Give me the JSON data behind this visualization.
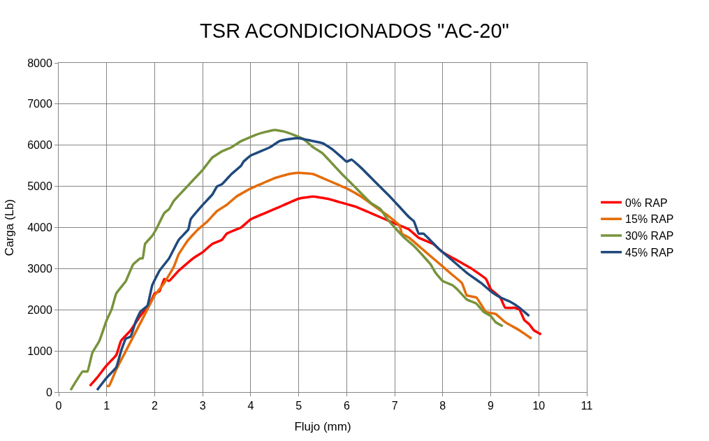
{
  "chart_data": {
    "type": "line",
    "title": "TSR ACONDICIONADOS \"AC-20\"",
    "xlabel": "Flujo (mm)",
    "ylabel": "Carga (Lb)",
    "xlim": [
      0,
      11
    ],
    "xticks": [
      0,
      1,
      2,
      3,
      4,
      5,
      6,
      7,
      8,
      9,
      10,
      11
    ],
    "ylim": [
      0,
      8000
    ],
    "yticks": [
      0,
      1000,
      2000,
      3000,
      4000,
      5000,
      6000,
      7000,
      8000
    ],
    "grid": true,
    "legend": "right",
    "marker": "none",
    "line_style": "solid",
    "series": [
      {
        "name": "0% RAP",
        "color": "#ff0000",
        "x": [
          0.65,
          0.8,
          1.0,
          1.2,
          1.3,
          1.5,
          1.7,
          1.9,
          2.0,
          2.1,
          2.2,
          2.3,
          2.5,
          2.8,
          3.0,
          3.2,
          3.4,
          3.5,
          3.8,
          4.0,
          4.3,
          4.6,
          5.0,
          5.3,
          5.6,
          5.9,
          6.2,
          6.5,
          7.0,
          7.3,
          7.5,
          7.8,
          8.0,
          8.3,
          8.6,
          8.9,
          9.0,
          9.2,
          9.3,
          9.5,
          9.6,
          9.7,
          9.8,
          9.9,
          10.05
        ],
        "values": [
          150,
          350,
          650,
          900,
          1250,
          1500,
          1850,
          2150,
          2400,
          2450,
          2750,
          2700,
          2950,
          3250,
          3400,
          3600,
          3700,
          3850,
          4000,
          4200,
          4350,
          4500,
          4700,
          4750,
          4700,
          4600,
          4500,
          4350,
          4100,
          3950,
          3750,
          3600,
          3400,
          3200,
          3000,
          2750,
          2500,
          2300,
          2050,
          2050,
          2000,
          1750,
          1650,
          1500,
          1400
        ]
      },
      {
        "name": "15% RAP",
        "color": "#e46c0a",
        "x": [
          1.0,
          1.05,
          1.2,
          1.4,
          1.6,
          1.8,
          2.0,
          2.2,
          2.4,
          2.5,
          2.7,
          2.9,
          3.1,
          3.3,
          3.5,
          3.7,
          4.0,
          4.3,
          4.5,
          4.8,
          5.0,
          5.3,
          5.5,
          5.8,
          6.0,
          6.3,
          6.6,
          6.9,
          7.1,
          7.15,
          7.3,
          7.6,
          7.9,
          8.2,
          8.4,
          8.5,
          8.7,
          8.9,
          9.1,
          9.3,
          9.6,
          9.85
        ],
        "values": [
          150,
          150,
          550,
          1000,
          1450,
          1900,
          2350,
          2650,
          3050,
          3350,
          3700,
          3950,
          4150,
          4400,
          4550,
          4750,
          4950,
          5100,
          5200,
          5300,
          5330,
          5300,
          5200,
          5050,
          4950,
          4750,
          4500,
          4250,
          4050,
          3850,
          3750,
          3450,
          3150,
          2850,
          2650,
          2350,
          2300,
          1950,
          1900,
          1700,
          1500,
          1300
        ]
      },
      {
        "name": "30% RAP",
        "color": "#77933c",
        "x": [
          0.25,
          0.5,
          0.6,
          0.7,
          0.85,
          1.0,
          1.1,
          1.2,
          1.4,
          1.55,
          1.7,
          1.75,
          1.8,
          1.95,
          2.05,
          2.2,
          2.3,
          2.4,
          2.6,
          2.8,
          3.0,
          3.1,
          3.2,
          3.4,
          3.6,
          3.8,
          4.0,
          4.1,
          4.3,
          4.5,
          4.7,
          4.9,
          5.1,
          5.3,
          5.5,
          5.7,
          5.9,
          6.2,
          6.5,
          6.7,
          6.85,
          7.0,
          7.2,
          7.4,
          7.6,
          7.75,
          7.85,
          8.0,
          8.2,
          8.3,
          8.5,
          8.7,
          8.85,
          9.0,
          9.1,
          9.25
        ],
        "values": [
          50,
          500,
          500,
          950,
          1250,
          1750,
          2000,
          2400,
          2700,
          3100,
          3250,
          3250,
          3600,
          3800,
          4000,
          4350,
          4450,
          4650,
          4900,
          5150,
          5400,
          5550,
          5700,
          5850,
          5950,
          6100,
          6200,
          6250,
          6320,
          6370,
          6330,
          6250,
          6150,
          5950,
          5800,
          5550,
          5300,
          4950,
          4600,
          4450,
          4200,
          4000,
          3750,
          3550,
          3300,
          3100,
          2900,
          2700,
          2600,
          2500,
          2250,
          2150,
          1950,
          1850,
          1700,
          1600
        ]
      },
      {
        "name": "45% RAP",
        "color": "#1f497d",
        "x": [
          0.8,
          1.0,
          1.2,
          1.3,
          1.4,
          1.5,
          1.6,
          1.7,
          1.8,
          1.85,
          1.95,
          2.1,
          2.3,
          2.5,
          2.7,
          2.75,
          3.0,
          3.2,
          3.3,
          3.4,
          3.6,
          3.8,
          3.85,
          4.0,
          4.2,
          4.4,
          4.6,
          4.8,
          5.0,
          5.3,
          5.5,
          5.7,
          5.9,
          6.0,
          6.1,
          6.3,
          6.6,
          6.9,
          7.1,
          7.3,
          7.4,
          7.5,
          7.6,
          7.9,
          8.1,
          8.5,
          8.8,
          9.0,
          9.2,
          9.4,
          9.6,
          9.8
        ],
        "values": [
          50,
          350,
          600,
          1000,
          1300,
          1350,
          1700,
          1950,
          2050,
          2100,
          2600,
          2950,
          3250,
          3700,
          3950,
          4200,
          4550,
          4800,
          5000,
          5050,
          5300,
          5500,
          5600,
          5750,
          5850,
          5950,
          6100,
          6150,
          6170,
          6100,
          6050,
          5900,
          5700,
          5600,
          5650,
          5450,
          5100,
          4750,
          4500,
          4250,
          4150,
          3850,
          3850,
          3500,
          3300,
          2900,
          2650,
          2450,
          2300,
          2200,
          2050,
          1850
        ]
      }
    ]
  }
}
